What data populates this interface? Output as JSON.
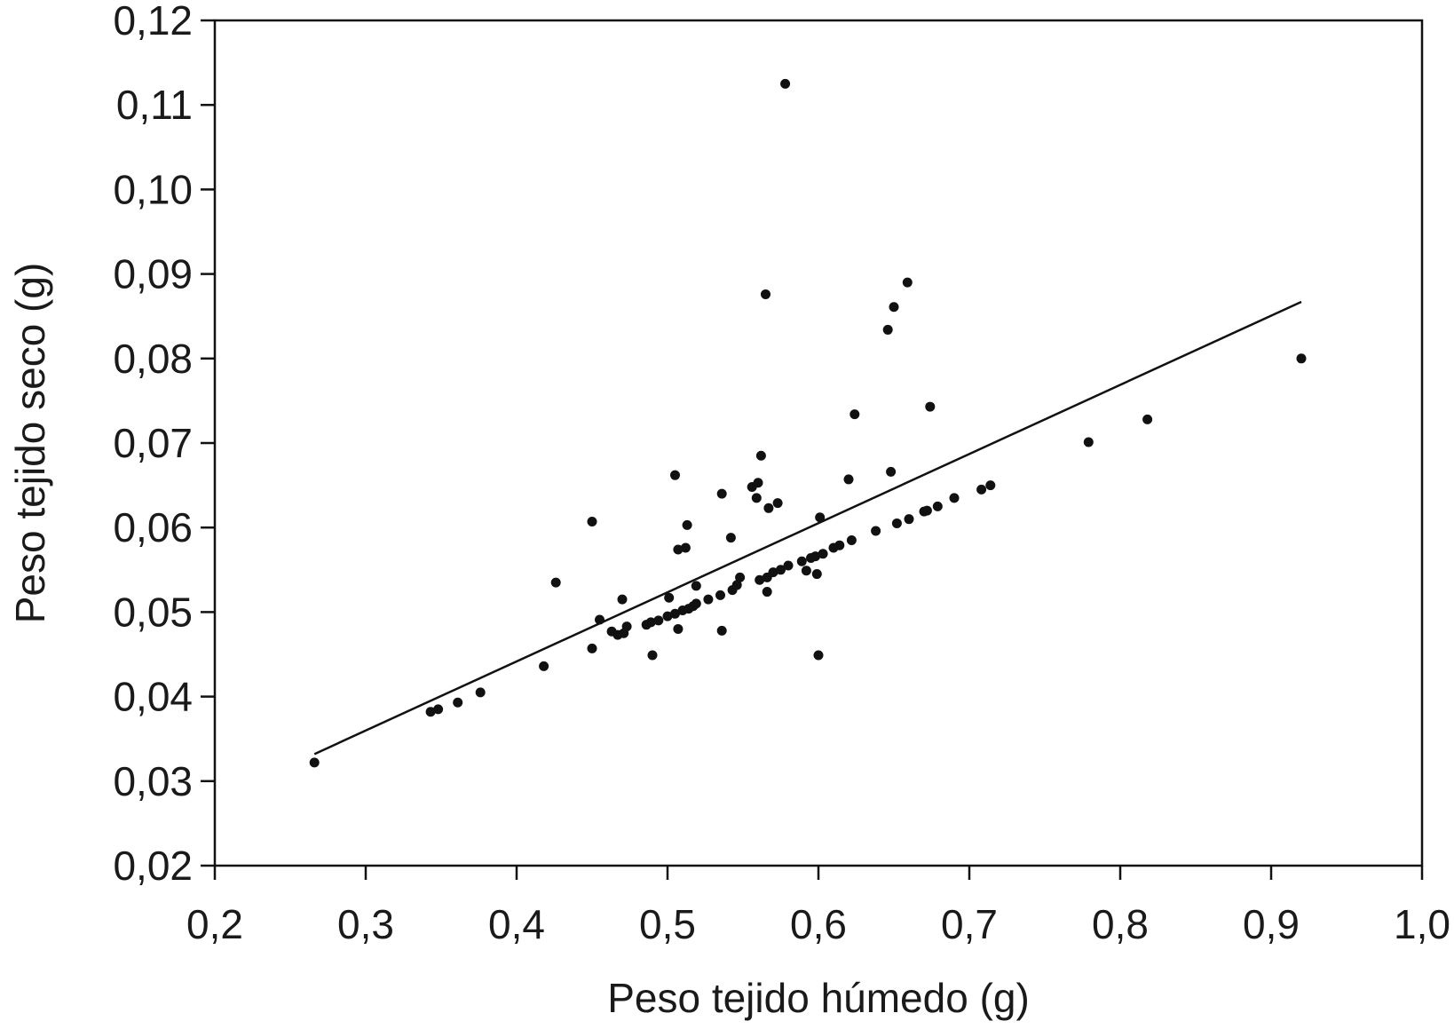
{
  "chart_data": {
    "type": "scatter",
    "xlabel": "Peso tejido húmedo (g)",
    "ylabel": "Peso tejido seco (g)",
    "xlim": [
      0.2,
      1.0
    ],
    "ylim": [
      0.02,
      0.12
    ],
    "x_ticks": [
      0.2,
      0.3,
      0.4,
      0.5,
      0.6,
      0.7,
      0.8,
      0.9,
      1.0
    ],
    "x_tick_labels": [
      "0,2",
      "0,3",
      "0,4",
      "0,5",
      "0,6",
      "0,7",
      "0,8",
      "0,9",
      "1,0"
    ],
    "y_ticks": [
      0.02,
      0.03,
      0.04,
      0.05,
      0.06,
      0.07,
      0.08,
      0.09,
      0.1,
      0.11,
      0.12
    ],
    "y_tick_labels": [
      "0,02",
      "0,03",
      "0,04",
      "0,05",
      "0,06",
      "0,07",
      "0,08",
      "0,09",
      "0,10",
      "0,11",
      "0,12"
    ],
    "grid": false,
    "point_color": "#111111",
    "line_color": "#111111",
    "points": [
      [
        0.266,
        0.0322
      ],
      [
        0.343,
        0.0382
      ],
      [
        0.348,
        0.0385
      ],
      [
        0.361,
        0.0393
      ],
      [
        0.376,
        0.0405
      ],
      [
        0.418,
        0.0436
      ],
      [
        0.426,
        0.0535
      ],
      [
        0.45,
        0.0607
      ],
      [
        0.45,
        0.0457
      ],
      [
        0.455,
        0.0491
      ],
      [
        0.463,
        0.0477
      ],
      [
        0.467,
        0.0473
      ],
      [
        0.47,
        0.0515
      ],
      [
        0.471,
        0.0475
      ],
      [
        0.473,
        0.0483
      ],
      [
        0.486,
        0.0485
      ],
      [
        0.489,
        0.0488
      ],
      [
        0.49,
        0.0449
      ],
      [
        0.494,
        0.049
      ],
      [
        0.5,
        0.0495
      ],
      [
        0.501,
        0.0517
      ],
      [
        0.505,
        0.0662
      ],
      [
        0.505,
        0.0498
      ],
      [
        0.507,
        0.0574
      ],
      [
        0.507,
        0.048
      ],
      [
        0.51,
        0.0502
      ],
      [
        0.512,
        0.0576
      ],
      [
        0.513,
        0.0603
      ],
      [
        0.514,
        0.0504
      ],
      [
        0.517,
        0.0507
      ],
      [
        0.519,
        0.051
      ],
      [
        0.519,
        0.0531
      ],
      [
        0.527,
        0.0515
      ],
      [
        0.535,
        0.052
      ],
      [
        0.536,
        0.064
      ],
      [
        0.536,
        0.0478
      ],
      [
        0.542,
        0.0588
      ],
      [
        0.543,
        0.0526
      ],
      [
        0.546,
        0.0532
      ],
      [
        0.548,
        0.0541
      ],
      [
        0.556,
        0.0648
      ],
      [
        0.559,
        0.0635
      ],
      [
        0.56,
        0.0653
      ],
      [
        0.561,
        0.0538
      ],
      [
        0.562,
        0.0685
      ],
      [
        0.565,
        0.0876
      ],
      [
        0.566,
        0.0524
      ],
      [
        0.566,
        0.0541
      ],
      [
        0.567,
        0.0623
      ],
      [
        0.57,
        0.0547
      ],
      [
        0.573,
        0.0629
      ],
      [
        0.575,
        0.055
      ],
      [
        0.578,
        0.1125
      ],
      [
        0.58,
        0.0555
      ],
      [
        0.589,
        0.056
      ],
      [
        0.592,
        0.0549
      ],
      [
        0.595,
        0.0564
      ],
      [
        0.598,
        0.0566
      ],
      [
        0.599,
        0.0545
      ],
      [
        0.6,
        0.0449
      ],
      [
        0.601,
        0.0612
      ],
      [
        0.603,
        0.0569
      ],
      [
        0.61,
        0.0576
      ],
      [
        0.614,
        0.0579
      ],
      [
        0.62,
        0.0657
      ],
      [
        0.622,
        0.0585
      ],
      [
        0.624,
        0.0734
      ],
      [
        0.638,
        0.0596
      ],
      [
        0.646,
        0.0834
      ],
      [
        0.648,
        0.0666
      ],
      [
        0.65,
        0.0861
      ],
      [
        0.652,
        0.0605
      ],
      [
        0.659,
        0.089
      ],
      [
        0.66,
        0.061
      ],
      [
        0.67,
        0.0619
      ],
      [
        0.672,
        0.062
      ],
      [
        0.674,
        0.0743
      ],
      [
        0.679,
        0.0625
      ],
      [
        0.69,
        0.0635
      ],
      [
        0.708,
        0.0645
      ],
      [
        0.714,
        0.065
      ],
      [
        0.779,
        0.0701
      ],
      [
        0.818,
        0.0728
      ],
      [
        0.92,
        0.08
      ]
    ],
    "regression_line": [
      [
        0.266,
        0.0332
      ],
      [
        0.92,
        0.0867
      ]
    ]
  }
}
